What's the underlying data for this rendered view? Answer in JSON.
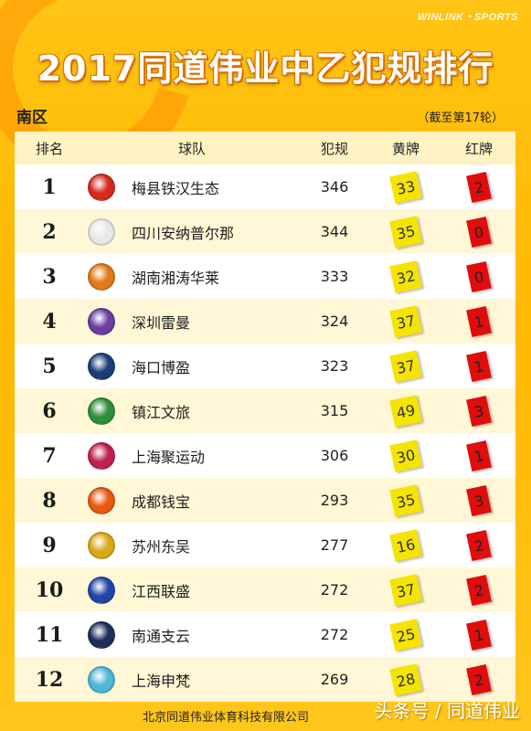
{
  "brand": "WINLINK・SPORTS",
  "title": "2017同道伟业中乙犯规排行",
  "region": "南区",
  "round_note": "（截至第17轮）",
  "headers": {
    "rank": "排名",
    "team": "球队",
    "fouls": "犯规",
    "yellow": "黄牌",
    "red": "红牌"
  },
  "rows": [
    {
      "rank": "1",
      "team": "梅县铁汉生态",
      "fouls": "346",
      "yellow": "33",
      "red": "2",
      "badge_color": "#d62a1e"
    },
    {
      "rank": "2",
      "team": "四川安纳普尔那",
      "fouls": "344",
      "yellow": "35",
      "red": "0",
      "badge_color": "#e8e8e8"
    },
    {
      "rank": "3",
      "team": "湖南湘涛华莱",
      "fouls": "333",
      "yellow": "32",
      "red": "0",
      "badge_color": "#e07a1a"
    },
    {
      "rank": "4",
      "team": "深圳雷曼",
      "fouls": "324",
      "yellow": "37",
      "red": "1",
      "badge_color": "#6b3fa0"
    },
    {
      "rank": "5",
      "team": "海口博盈",
      "fouls": "323",
      "yellow": "37",
      "red": "1",
      "badge_color": "#1c3e7a"
    },
    {
      "rank": "6",
      "team": "镇江文旅",
      "fouls": "315",
      "yellow": "49",
      "red": "3",
      "badge_color": "#2f8f3a"
    },
    {
      "rank": "7",
      "team": "上海聚运动",
      "fouls": "306",
      "yellow": "30",
      "red": "1",
      "badge_color": "#c0224d"
    },
    {
      "rank": "8",
      "team": "成都钱宝",
      "fouls": "293",
      "yellow": "35",
      "red": "3",
      "badge_color": "#e85a10"
    },
    {
      "rank": "9",
      "team": "苏州东吴",
      "fouls": "277",
      "yellow": "16",
      "red": "2",
      "badge_color": "#d9a81a"
    },
    {
      "rank": "10",
      "team": "江西联盛",
      "fouls": "272",
      "yellow": "37",
      "red": "2",
      "badge_color": "#2147a8"
    },
    {
      "rank": "11",
      "team": "南通支云",
      "fouls": "272",
      "yellow": "25",
      "red": "1",
      "badge_color": "#1e2f5e"
    },
    {
      "rank": "12",
      "team": "上海申梵",
      "fouls": "269",
      "yellow": "28",
      "red": "2",
      "badge_color": "#4fb6d6"
    }
  ],
  "footer": "北京同道伟业体育科技有限公司",
  "watermark": "头条号 / 同道伟业"
}
